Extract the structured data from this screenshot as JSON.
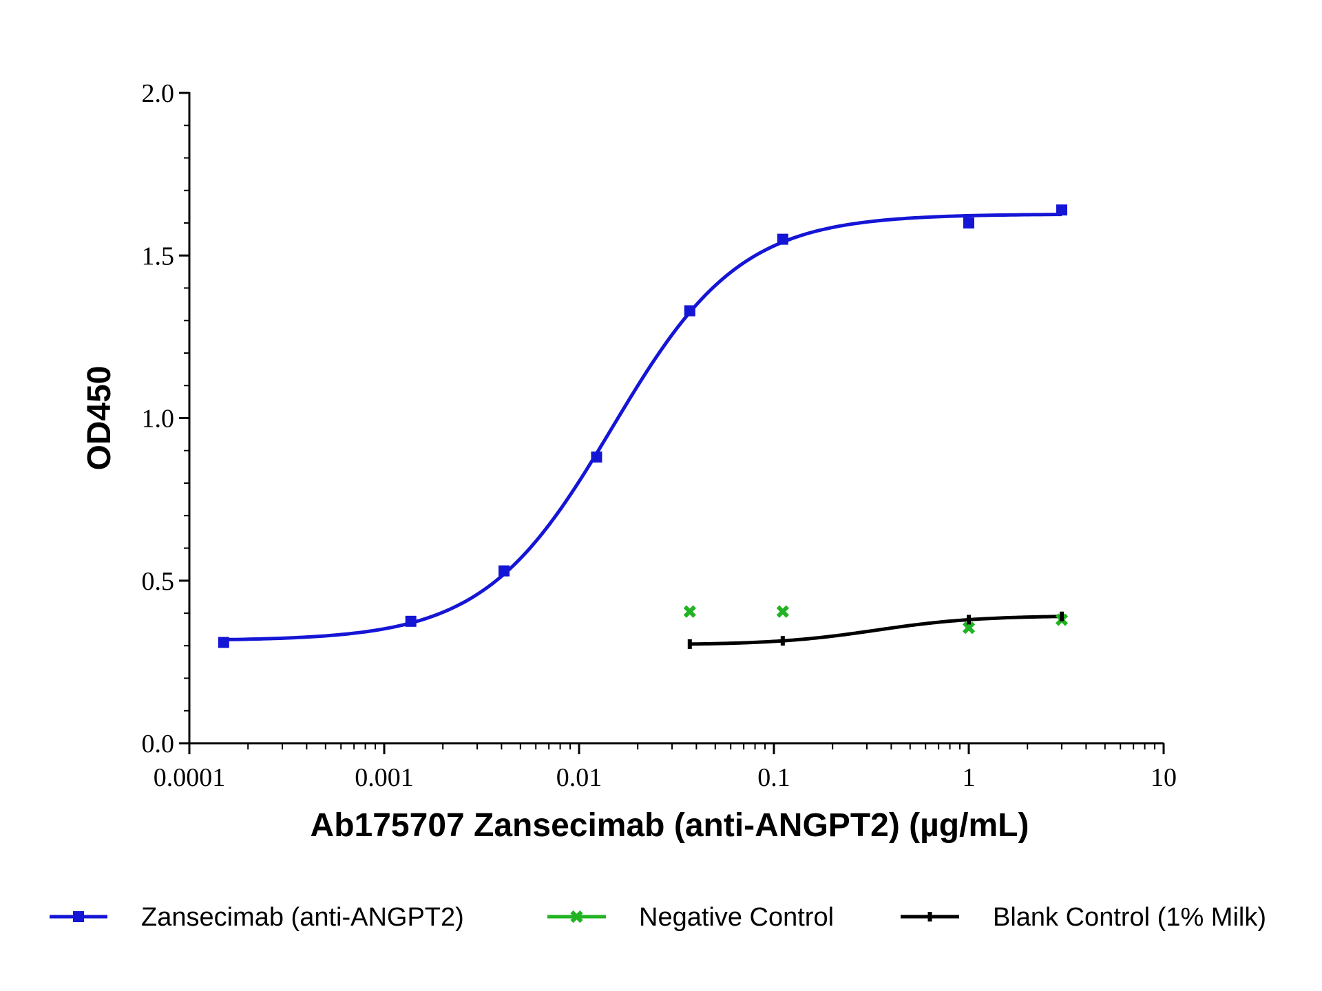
{
  "chart_data": {
    "type": "scatter",
    "xlabel": "Ab175707 Zansecimab (anti-ANGPT2) (µg/mL)",
    "ylabel": "OD450",
    "x_scale": "log",
    "xlim": [
      0.0001,
      10
    ],
    "ylim": [
      0,
      2.0
    ],
    "x_tick_labels": [
      "0.0001",
      "0.001",
      "0.01",
      "0.1",
      "1",
      "10"
    ],
    "y_tick_labels": [
      "0.0",
      "0.5",
      "1.0",
      "1.5",
      "2.0"
    ],
    "grid": false,
    "legend_position": "bottom",
    "series": [
      {
        "name": "Zansecimab (anti-ANGPT2)",
        "color": "#1515d6",
        "marker": "square",
        "fit_curve": true,
        "x": [
          0.00015,
          0.00137,
          0.00412,
          0.0123,
          0.037,
          0.111,
          1.0,
          3.0
        ],
        "y": [
          0.31,
          0.375,
          0.53,
          0.88,
          1.33,
          1.55,
          1.6,
          1.64
        ]
      },
      {
        "name": "Negative Control",
        "color": "#22b322",
        "marker": "x",
        "fit_curve": false,
        "x": [
          0.037,
          0.111,
          1.0,
          3.0
        ],
        "y": [
          0.405,
          0.405,
          0.355,
          0.38
        ]
      },
      {
        "name": "Blank Control (1% Milk)",
        "color": "#000000",
        "marker": "dash",
        "fit_curve": true,
        "x": [
          0.037,
          0.111,
          1.0,
          3.0
        ],
        "y": [
          0.305,
          0.315,
          0.38,
          0.39
        ]
      }
    ]
  }
}
